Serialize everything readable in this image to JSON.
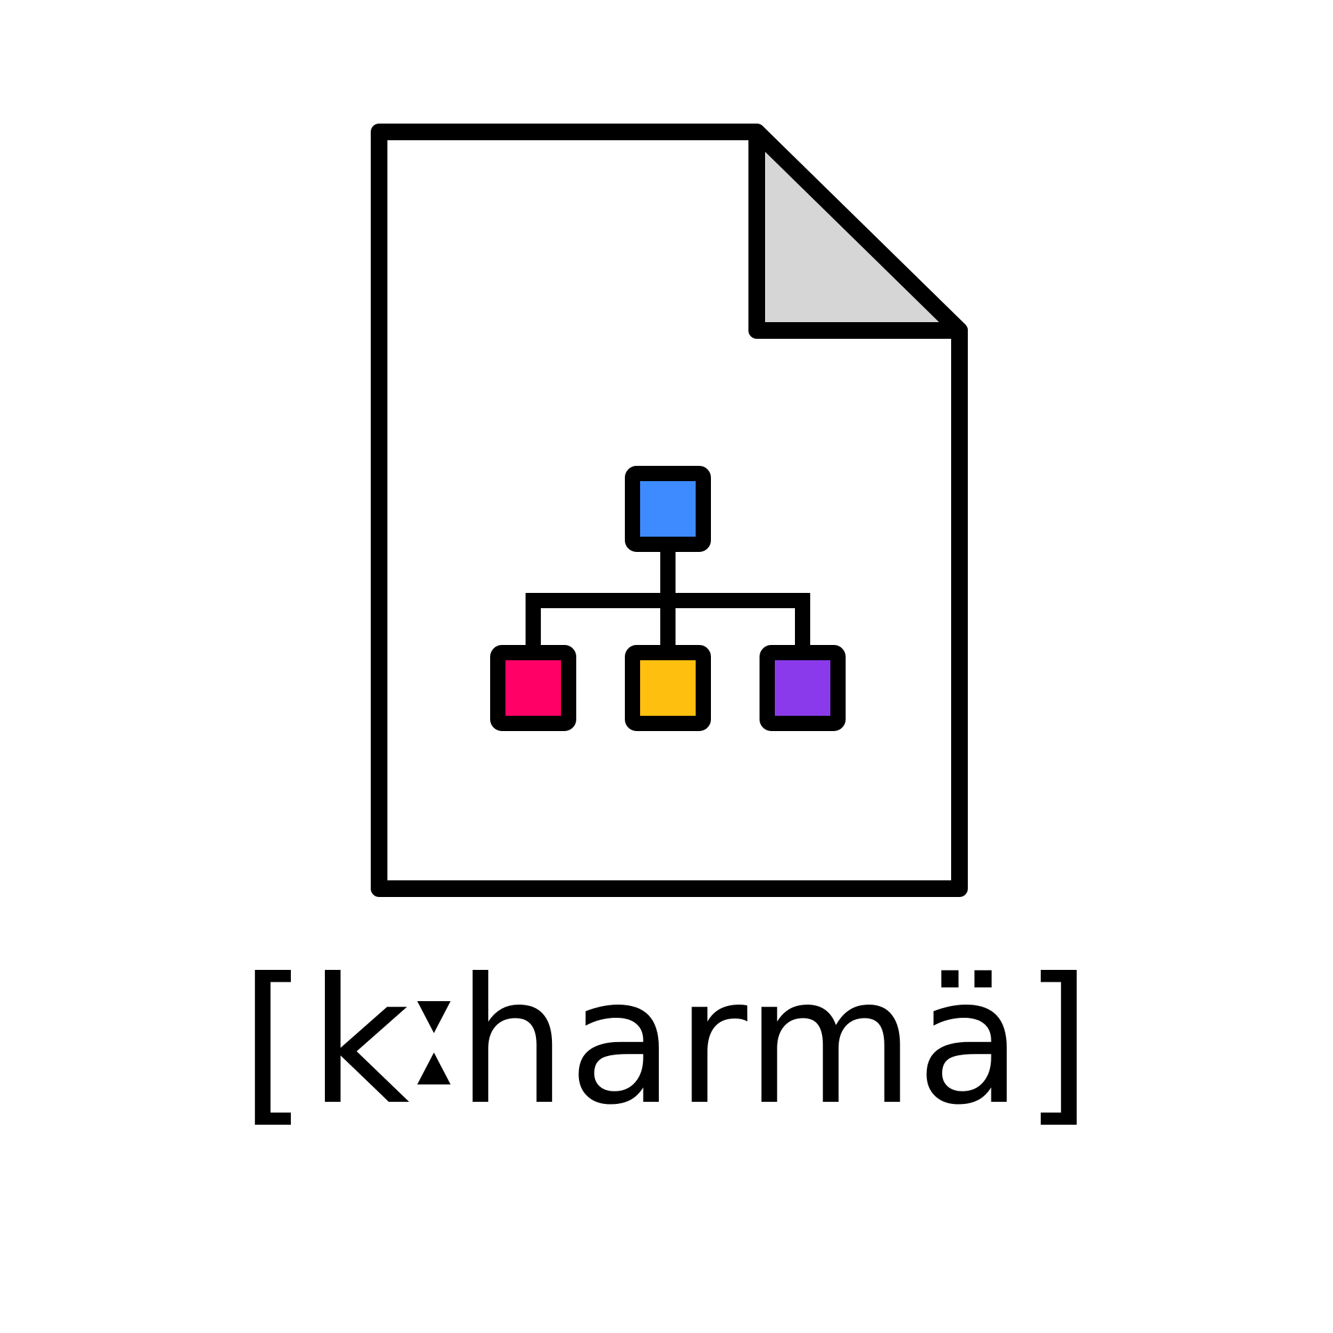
{
  "logo": {
    "icon": "document-hierarchy-icon",
    "wordmark_open": "[k",
    "wordmark_colon_glyph": "ː",
    "wordmark_rest": "harmä]",
    "wordmark_full": "[kːharmä]"
  },
  "colors": {
    "stroke": "#000000",
    "page_fill": "#ffffff",
    "fold_fill": "#d6d6d6",
    "node_root": "#3d8bff",
    "node_left": "#ff0066",
    "node_middle": "#ffbf0f",
    "node_right": "#8a3aea"
  }
}
